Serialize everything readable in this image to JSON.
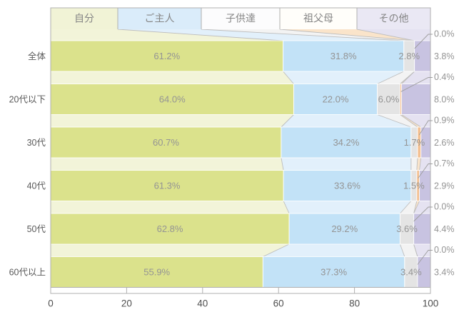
{
  "chart_data": {
    "type": "bar",
    "subtype": "horizontal-100pct-stacked-flow",
    "orientation": "horizontal",
    "legend_position": "top",
    "grid": false,
    "xlim": [
      0,
      100
    ],
    "x_ticks": [
      0,
      20,
      40,
      60,
      80,
      100
    ],
    "value_suffix": "%",
    "categories": [
      "全体",
      "20代以下",
      "30代",
      "40代",
      "50代",
      "60代以上"
    ],
    "series": [
      {
        "name": "自分",
        "color": "#dbe28c",
        "flow_color": "#f2f4d9",
        "legend_color": "#f1f3d6",
        "values": [
          61.2,
          64.0,
          60.7,
          61.3,
          62.8,
          55.9
        ]
      },
      {
        "name": "ご主人",
        "color": "#c2e2f7",
        "flow_color": "#e2f0fb",
        "legend_color": "#daecfa",
        "values": [
          31.8,
          22.0,
          34.2,
          33.6,
          29.2,
          37.3
        ]
      },
      {
        "name": "子供達",
        "color": "#e4e4e4",
        "flow_color": "#f3f3f3",
        "legend_color": "#fcfcfd",
        "values": [
          2.8,
          6.0,
          1.7,
          1.5,
          3.6,
          3.4
        ]
      },
      {
        "name": "祖父母",
        "color": "#f3c091",
        "flow_color": "#fae4ca",
        "legend_color": "#fffefa",
        "values": [
          0.0,
          0.4,
          0.9,
          0.7,
          0.0,
          0.0
        ]
      },
      {
        "name": "その他",
        "color": "#c8c3e1",
        "flow_color": "#e5e2f1",
        "legend_color": "#eae8f4",
        "values": [
          3.8,
          8.0,
          2.6,
          2.9,
          4.4,
          3.4
        ]
      }
    ]
  }
}
